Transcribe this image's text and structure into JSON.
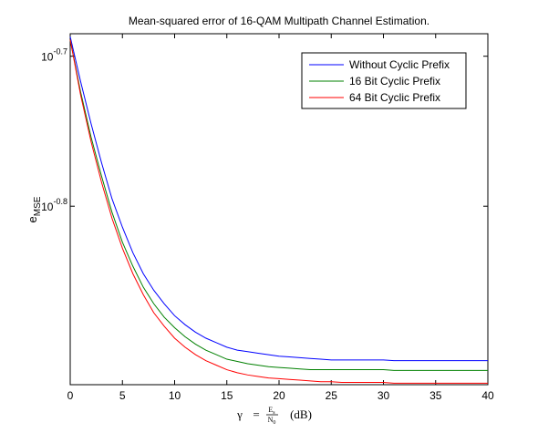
{
  "chart_data": {
    "type": "line",
    "title": "Mean-squared error of 16-QAM Multipath Channel Estimation.",
    "xlabel": {
      "gamma": "γ",
      "equals": "=",
      "num": "E",
      "num_sub": "s",
      "den": "N",
      "den_sub": "0",
      "units": "(dB)"
    },
    "ylabel": {
      "base": "e",
      "sub": "MSE"
    },
    "xlim": [
      0,
      40
    ],
    "ylim_log10": [
      -0.919,
      -0.685
    ],
    "x_ticks": [
      0,
      5,
      10,
      15,
      20,
      25,
      30,
      35,
      40
    ],
    "x_tick_labels": [
      "0",
      "5",
      "10",
      "15",
      "20",
      "25",
      "30",
      "35",
      "40"
    ],
    "y_ticks_log10": [
      -0.7,
      -0.8
    ],
    "y_tick_labels": [
      {
        "base": "10",
        "exp": "-0.7"
      },
      {
        "base": "10",
        "exp": "-0.8"
      }
    ],
    "y_scale": "log",
    "grid": false,
    "legend_position": "top-right",
    "x": [
      0,
      1,
      2,
      3,
      4,
      5,
      6,
      7,
      8,
      9,
      10,
      11,
      12,
      13,
      14,
      15,
      16,
      17,
      18,
      19,
      20,
      21,
      22,
      23,
      24,
      25,
      26,
      27,
      28,
      29,
      30,
      31,
      32,
      33,
      34,
      35,
      36,
      37,
      38,
      39,
      40
    ],
    "series": [
      {
        "name": "Without Cyclic Prefix",
        "color": "#0000ff",
        "log10_values": [
          -0.687,
          -0.717,
          -0.745,
          -0.771,
          -0.795,
          -0.814,
          -0.831,
          -0.845,
          -0.856,
          -0.865,
          -0.873,
          -0.879,
          -0.884,
          -0.888,
          -0.891,
          -0.894,
          -0.896,
          -0.897,
          -0.898,
          -0.899,
          -0.9,
          -0.9005,
          -0.901,
          -0.9015,
          -0.902,
          -0.9025,
          -0.9025,
          -0.9025,
          -0.9025,
          -0.9025,
          -0.9025,
          -0.903,
          -0.903,
          -0.903,
          -0.903,
          -0.903,
          -0.903,
          -0.903,
          -0.903,
          -0.903,
          -0.903
        ]
      },
      {
        "name": "16 Bit Cyclic Prefix",
        "color": "#008000",
        "log10_values": [
          -0.689,
          -0.724,
          -0.754,
          -0.78,
          -0.804,
          -0.824,
          -0.84,
          -0.854,
          -0.865,
          -0.874,
          -0.881,
          -0.887,
          -0.892,
          -0.896,
          -0.899,
          -0.902,
          -0.9035,
          -0.905,
          -0.906,
          -0.907,
          -0.9075,
          -0.908,
          -0.9085,
          -0.909,
          -0.909,
          -0.909,
          -0.909,
          -0.909,
          -0.909,
          -0.909,
          -0.909,
          -0.9095,
          -0.9095,
          -0.9095,
          -0.9095,
          -0.9095,
          -0.9095,
          -0.9095,
          -0.9095,
          -0.9095,
          -0.9095
        ]
      },
      {
        "name": "64 Bit Cyclic Prefix",
        "color": "#ff0000",
        "log10_values": [
          -0.689,
          -0.726,
          -0.757,
          -0.784,
          -0.808,
          -0.828,
          -0.845,
          -0.859,
          -0.871,
          -0.88,
          -0.888,
          -0.894,
          -0.899,
          -0.903,
          -0.906,
          -0.909,
          -0.911,
          -0.9125,
          -0.9135,
          -0.9145,
          -0.915,
          -0.9155,
          -0.916,
          -0.9165,
          -0.917,
          -0.917,
          -0.9175,
          -0.9175,
          -0.9175,
          -0.9175,
          -0.9175,
          -0.918,
          -0.918,
          -0.918,
          -0.918,
          -0.918,
          -0.918,
          -0.918,
          -0.918,
          -0.918,
          -0.918
        ]
      }
    ]
  }
}
